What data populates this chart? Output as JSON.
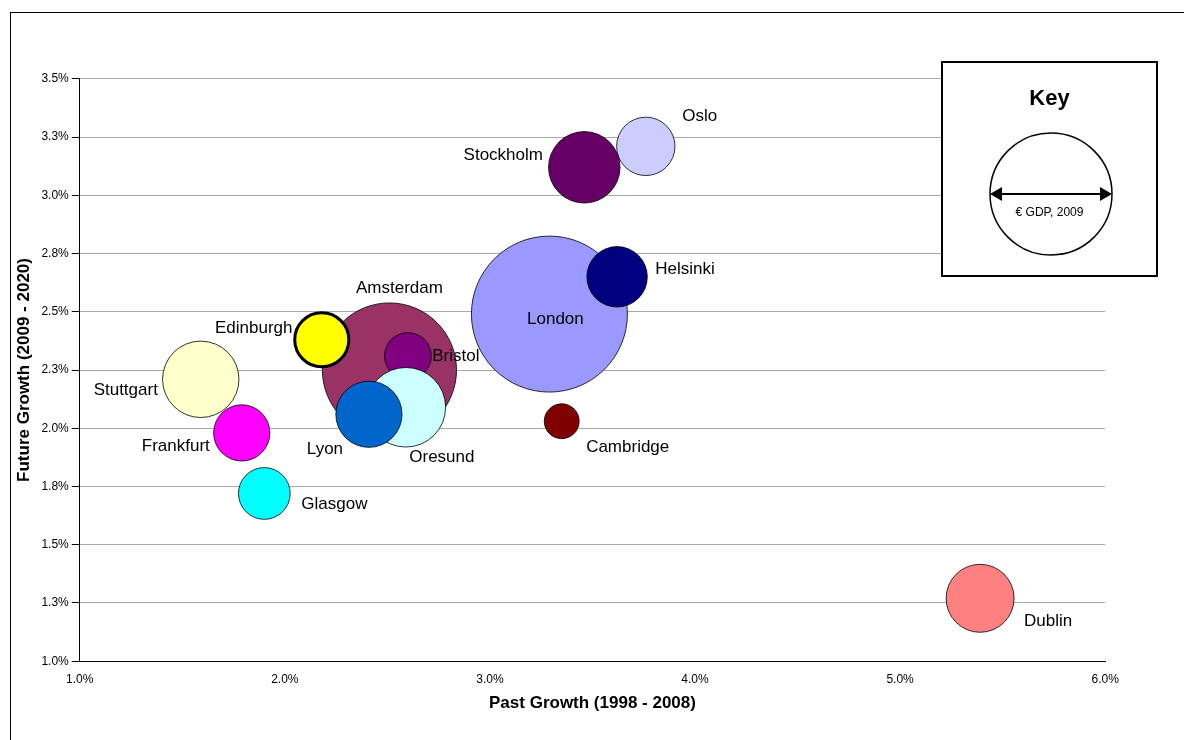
{
  "chart_data": {
    "type": "bubble",
    "xlabel": "Past Growth (1998 - 2008)",
    "ylabel": "Future Growth (2009 - 2020)",
    "legend_title": "Key",
    "annotations": [
      "€ GDP, 2009"
    ],
    "xlim": [
      1.0,
      6.0
    ],
    "xticks": [
      {
        "value": 1.0,
        "label": "1.0%"
      },
      {
        "value": 2.0,
        "label": "2.0%"
      },
      {
        "value": 3.0,
        "label": "3.0%"
      },
      {
        "value": 4.0,
        "label": "4.0%"
      },
      {
        "value": 5.0,
        "label": "5.0%"
      },
      {
        "value": 6.0,
        "label": "6.0%"
      }
    ],
    "ylim": [
      1.0,
      3.5
    ],
    "yticks": [
      {
        "value": 1.0,
        "label": "1.0%"
      },
      {
        "value": 1.25,
        "label": "1.3%"
      },
      {
        "value": 1.5,
        "label": "1.5%"
      },
      {
        "value": 1.75,
        "label": "1.8%"
      },
      {
        "value": 2.0,
        "label": "2.0%"
      },
      {
        "value": 2.25,
        "label": "2.3%"
      },
      {
        "value": 2.5,
        "label": "2.5%"
      },
      {
        "value": 2.75,
        "label": "2.8%"
      },
      {
        "value": 3.0,
        "label": "3.0%"
      },
      {
        "value": 3.25,
        "label": "3.3%"
      },
      {
        "value": 3.5,
        "label": "3.5%"
      }
    ],
    "grid": "y",
    "legend": false,
    "series": [
      {
        "name": "Oslo",
        "color": "#ccccff",
        "x": [
          3.76
        ],
        "values": [
          3.21
        ],
        "sizes": [
          0.14
        ]
      },
      {
        "name": "Stockholm",
        "color": "#660066",
        "x": [
          3.46
        ],
        "values": [
          3.12
        ],
        "sizes": [
          0.21
        ]
      },
      {
        "name": "London",
        "color": "#9999ff",
        "x": [
          3.29
        ],
        "values": [
          2.49
        ],
        "sizes": [
          1
        ]
      },
      {
        "name": "Helsinki",
        "color": "#000080",
        "x": [
          3.62
        ],
        "values": [
          2.65
        ],
        "sizes": [
          0.15
        ]
      },
      {
        "name": "Amsterdam",
        "color": "#993366",
        "x": [
          2.51
        ],
        "values": [
          2.25
        ],
        "sizes": [
          0.74
        ]
      },
      {
        "name": "Edinburgh",
        "color": "#ffff00",
        "x": [
          2.18
        ],
        "values": [
          2.38
        ],
        "sizes": [
          0.12
        ]
      },
      {
        "name": "Bristol",
        "color": "#800080",
        "x": [
          2.6
        ],
        "values": [
          2.31
        ],
        "sizes": [
          0.09
        ]
      },
      {
        "name": "Stuttgart",
        "color": "#ffffcc",
        "x": [
          1.59
        ],
        "values": [
          2.21
        ],
        "sizes": [
          0.24
        ]
      },
      {
        "name": "Oresund",
        "color": "#ccffff",
        "x": [
          2.59
        ],
        "values": [
          2.09
        ],
        "sizes": [
          0.26
        ]
      },
      {
        "name": "Lyon",
        "color": "#0066cc",
        "x": [
          2.41
        ],
        "values": [
          2.06
        ],
        "sizes": [
          0.18
        ]
      },
      {
        "name": "Frankfurt",
        "color": "#ff00ff",
        "x": [
          1.79
        ],
        "values": [
          1.98
        ],
        "sizes": [
          0.13
        ]
      },
      {
        "name": "Glasgow",
        "color": "#00ffff",
        "x": [
          1.9
        ],
        "values": [
          1.72
        ],
        "sizes": [
          0.11
        ]
      },
      {
        "name": "Cambridge",
        "color": "#800000",
        "x": [
          3.35
        ],
        "values": [
          2.03
        ],
        "sizes": [
          0.05
        ]
      },
      {
        "name": "Dublin",
        "color": "#ff8080",
        "x": [
          5.39
        ],
        "values": [
          1.27
        ],
        "sizes": [
          0.19
        ]
      }
    ]
  }
}
